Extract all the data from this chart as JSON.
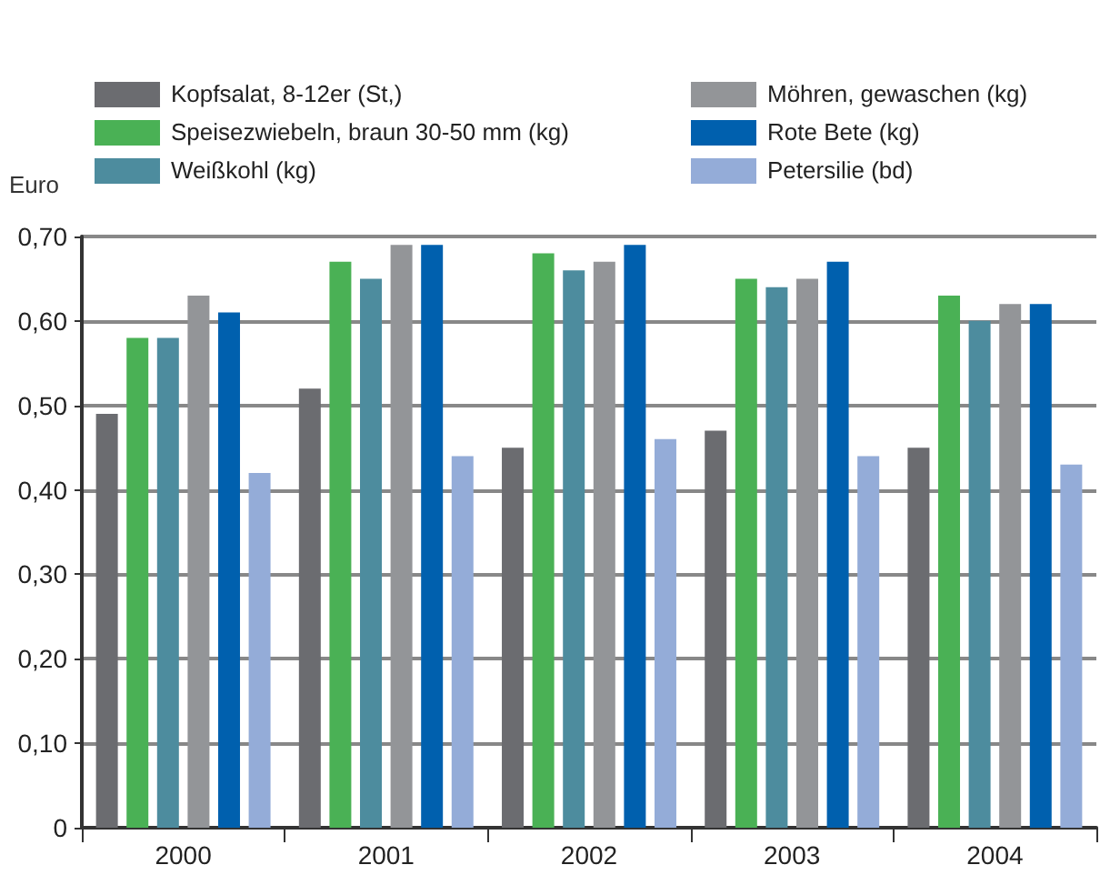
{
  "chart_data": {
    "type": "bar",
    "ylabel": "Euro",
    "categories": [
      "2000",
      "2001",
      "2002",
      "2003",
      "2004"
    ],
    "series": [
      {
        "name": "Kopfsalat, 8-12er (St,)",
        "color": "#6b6c70",
        "values": [
          0.49,
          0.52,
          0.45,
          0.47,
          0.45
        ]
      },
      {
        "name": "Speisezwiebeln, braun 30-50 mm (kg)",
        "color": "#4ab155",
        "values": [
          0.58,
          0.67,
          0.68,
          0.65,
          0.63
        ]
      },
      {
        "name": "Weißkohl (kg)",
        "color": "#4d8c9e",
        "values": [
          0.58,
          0.65,
          0.66,
          0.64,
          0.6
        ]
      },
      {
        "name": "Möhren, gewaschen (kg)",
        "color": "#939598",
        "values": [
          0.63,
          0.69,
          0.67,
          0.65,
          0.62
        ]
      },
      {
        "name": "Rote Bete (kg)",
        "color": "#0060ae",
        "values": [
          0.61,
          0.69,
          0.69,
          0.67,
          0.62
        ]
      },
      {
        "name": "Petersilie (bd)",
        "color": "#94acd8",
        "values": [
          0.42,
          0.44,
          0.46,
          0.44,
          0.43
        ]
      }
    ],
    "ylim": [
      0,
      0.7
    ],
    "yticks": [
      0,
      {
        "value": 0.1,
        "label": "0,10"
      },
      {
        "value": 0.2,
        "label": "0,20"
      },
      {
        "value": 0.3,
        "label": "0,30"
      },
      {
        "value": 0.4,
        "label": "0,40"
      },
      {
        "value": 0.5,
        "label": "0,50"
      },
      {
        "value": 0.6,
        "label": "0,60"
      },
      {
        "value": 0.7,
        "label": "0,70"
      }
    ],
    "grid": "y",
    "legend": "top"
  }
}
